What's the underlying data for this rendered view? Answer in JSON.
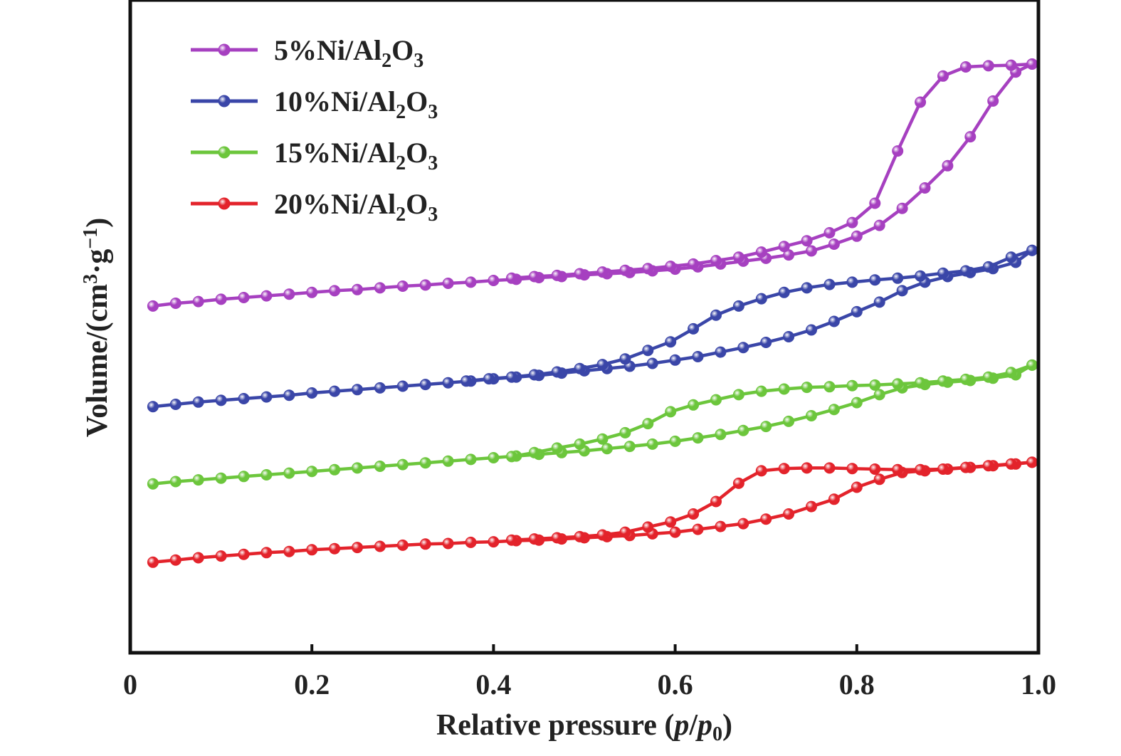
{
  "chart_data": {
    "type": "line",
    "xlabel": {
      "main": "Relative pressure (",
      "p": "p",
      "slash": "/",
      "p0": "p",
      "p0_sub": "0",
      "close": ")"
    },
    "ylabel": {
      "main": "Volume/(cm",
      "sup3": "3",
      "dot": "·g",
      "supneg": "−1",
      "close": ")"
    },
    "xlim": [
      0,
      1.0
    ],
    "ylim": [
      0,
      100
    ],
    "x_ticks": [
      {
        "value": 0,
        "label": "0"
      },
      {
        "value": 0.2,
        "label": "0.2"
      },
      {
        "value": 0.4,
        "label": "0.4"
      },
      {
        "value": 0.6,
        "label": "0.6"
      },
      {
        "value": 0.8,
        "label": "0.8"
      },
      {
        "value": 1.0,
        "label": "1.0"
      }
    ],
    "y_tick_labels": false,
    "grid": false,
    "legend_position": "top-left",
    "series": [
      {
        "name": "5%Ni/Al2O3",
        "legend": {
          "prefix": "5%Ni/Al",
          "sub1": "2",
          "mid": "O",
          "sub2": "3"
        },
        "color": "#a640c0",
        "adsorption": {
          "x": [
            0.025,
            0.05,
            0.075,
            0.1,
            0.125,
            0.15,
            0.175,
            0.2,
            0.225,
            0.25,
            0.275,
            0.3,
            0.325,
            0.35,
            0.375,
            0.4,
            0.425,
            0.45,
            0.475,
            0.5,
            0.525,
            0.55,
            0.575,
            0.6,
            0.625,
            0.65,
            0.675,
            0.7,
            0.725,
            0.75,
            0.775,
            0.8,
            0.825,
            0.85,
            0.875,
            0.9,
            0.925,
            0.95,
            0.975,
            0.993
          ],
          "y": [
            57.4,
            57.9,
            58.2,
            58.6,
            58.9,
            59.2,
            59.5,
            59.8,
            60.1,
            60.3,
            60.6,
            60.9,
            61.1,
            61.4,
            61.6,
            61.9,
            62.1,
            62.4,
            62.6,
            62.9,
            63.1,
            63.3,
            63.6,
            63.9,
            64.3,
            64.8,
            65.3,
            65.8,
            66.4,
            67.1,
            68.3,
            69.7,
            71.6,
            74.6,
            78.2,
            82.1,
            87.2,
            93.5,
            98.6,
            100.0
          ]
        },
        "desorption": {
          "x": [
            0.993,
            0.97,
            0.945,
            0.92,
            0.895,
            0.87,
            0.845,
            0.82,
            0.795,
            0.77,
            0.745,
            0.72,
            0.695,
            0.67,
            0.645,
            0.62,
            0.595,
            0.57,
            0.545,
            0.52,
            0.495,
            0.47,
            0.445,
            0.42
          ],
          "y": [
            100.0,
            99.8,
            99.7,
            99.5,
            97.9,
            93.3,
            84.7,
            75.5,
            72.1,
            70.3,
            68.9,
            67.9,
            66.9,
            66.0,
            65.4,
            64.8,
            64.4,
            64.0,
            63.7,
            63.4,
            63.1,
            62.8,
            62.6,
            62.3
          ]
        }
      },
      {
        "name": "10%Ni/Al2O3",
        "legend": {
          "prefix": "10%Ni/Al",
          "sub1": "2",
          "mid": "O",
          "sub2": "3"
        },
        "color": "#3a46a8",
        "adsorption": {
          "x": [
            0.025,
            0.05,
            0.075,
            0.1,
            0.125,
            0.15,
            0.175,
            0.2,
            0.225,
            0.25,
            0.275,
            0.3,
            0.325,
            0.35,
            0.375,
            0.4,
            0.425,
            0.45,
            0.475,
            0.5,
            0.525,
            0.55,
            0.575,
            0.6,
            0.625,
            0.65,
            0.675,
            0.7,
            0.725,
            0.75,
            0.775,
            0.8,
            0.825,
            0.85,
            0.875,
            0.9,
            0.925,
            0.95,
            0.975,
            0.993
          ],
          "y": [
            39.7,
            40.1,
            40.5,
            40.8,
            41.1,
            41.4,
            41.7,
            42.1,
            42.4,
            42.7,
            43.0,
            43.3,
            43.6,
            43.9,
            44.2,
            44.6,
            44.9,
            45.2,
            45.6,
            46.0,
            46.4,
            46.8,
            47.3,
            47.9,
            48.5,
            49.3,
            50.1,
            51.0,
            52.0,
            53.2,
            54.7,
            56.4,
            58.1,
            60.1,
            61.6,
            62.6,
            63.3,
            64.0,
            65.1,
            67.2
          ]
        },
        "desorption": {
          "x": [
            0.993,
            0.97,
            0.945,
            0.92,
            0.895,
            0.87,
            0.845,
            0.82,
            0.795,
            0.77,
            0.745,
            0.72,
            0.695,
            0.67,
            0.645,
            0.62,
            0.595,
            0.57,
            0.545,
            0.52,
            0.495,
            0.47,
            0.445,
            0.42,
            0.395,
            0.37
          ],
          "y": [
            67.2,
            66.0,
            64.3,
            63.6,
            63.2,
            62.7,
            62.3,
            62.0,
            61.6,
            61.2,
            60.6,
            59.8,
            58.7,
            57.4,
            55.8,
            53.4,
            51.1,
            49.6,
            48.1,
            47.1,
            46.4,
            45.8,
            45.3,
            44.9,
            44.6,
            44.2
          ]
        }
      },
      {
        "name": "15%Ni/Al2O3",
        "legend": {
          "prefix": "15%Ni/Al",
          "sub1": "2",
          "mid": "O",
          "sub2": "3"
        },
        "color": "#6cc63c",
        "adsorption": {
          "x": [
            0.025,
            0.05,
            0.075,
            0.1,
            0.125,
            0.15,
            0.175,
            0.2,
            0.225,
            0.25,
            0.275,
            0.3,
            0.325,
            0.35,
            0.375,
            0.4,
            0.425,
            0.45,
            0.475,
            0.5,
            0.525,
            0.55,
            0.575,
            0.6,
            0.625,
            0.65,
            0.675,
            0.7,
            0.725,
            0.75,
            0.775,
            0.8,
            0.825,
            0.85,
            0.875,
            0.9,
            0.925,
            0.95,
            0.975,
            0.993
          ],
          "y": [
            26.1,
            26.5,
            26.8,
            27.1,
            27.4,
            27.7,
            28.0,
            28.3,
            28.6,
            28.9,
            29.2,
            29.5,
            29.8,
            30.1,
            30.4,
            30.7,
            31.0,
            31.3,
            31.6,
            31.9,
            32.3,
            32.7,
            33.1,
            33.6,
            34.2,
            34.8,
            35.5,
            36.2,
            37.1,
            38.1,
            39.2,
            40.4,
            41.8,
            43.0,
            43.6,
            44.0,
            44.3,
            44.7,
            45.3,
            47.0
          ]
        },
        "desorption": {
          "x": [
            0.993,
            0.97,
            0.945,
            0.92,
            0.895,
            0.87,
            0.845,
            0.82,
            0.795,
            0.77,
            0.745,
            0.72,
            0.695,
            0.67,
            0.645,
            0.62,
            0.595,
            0.57,
            0.545,
            0.52,
            0.495,
            0.47,
            0.445,
            0.42
          ],
          "y": [
            47.0,
            45.7,
            44.9,
            44.5,
            44.2,
            43.9,
            43.7,
            43.5,
            43.4,
            43.2,
            43.1,
            42.8,
            42.4,
            41.8,
            40.9,
            40.0,
            38.8,
            36.7,
            35.1,
            34.0,
            33.1,
            32.4,
            31.6,
            30.9
          ]
        }
      },
      {
        "name": "20%Ni/Al2O3",
        "legend": {
          "prefix": "20%Ni/Al",
          "sub1": "2",
          "mid": "O",
          "sub2": "3"
        },
        "color": "#e3232b",
        "adsorption": {
          "x": [
            0.025,
            0.05,
            0.075,
            0.1,
            0.125,
            0.15,
            0.175,
            0.2,
            0.225,
            0.25,
            0.275,
            0.3,
            0.325,
            0.35,
            0.375,
            0.4,
            0.425,
            0.45,
            0.475,
            0.5,
            0.525,
            0.55,
            0.575,
            0.6,
            0.625,
            0.65,
            0.675,
            0.7,
            0.725,
            0.75,
            0.775,
            0.8,
            0.825,
            0.85,
            0.875,
            0.9,
            0.925,
            0.95,
            0.975,
            0.993
          ],
          "y": [
            12.3,
            12.7,
            13.1,
            13.4,
            13.7,
            14.0,
            14.2,
            14.5,
            14.7,
            14.9,
            15.1,
            15.3,
            15.5,
            15.6,
            15.8,
            15.9,
            16.1,
            16.2,
            16.4,
            16.6,
            16.8,
            17.0,
            17.3,
            17.6,
            18.1,
            18.6,
            19.1,
            19.9,
            20.8,
            22.1,
            23.4,
            25.5,
            26.9,
            28.1,
            28.4,
            28.7,
            29.0,
            29.3,
            29.6,
            29.9
          ]
        },
        "desorption": {
          "x": [
            0.993,
            0.97,
            0.945,
            0.92,
            0.895,
            0.87,
            0.845,
            0.82,
            0.795,
            0.77,
            0.745,
            0.72,
            0.695,
            0.67,
            0.645,
            0.62,
            0.595,
            0.57,
            0.545,
            0.52,
            0.495,
            0.47,
            0.445,
            0.42
          ],
          "y": [
            29.9,
            29.6,
            29.3,
            29.0,
            28.7,
            28.6,
            28.6,
            28.7,
            28.8,
            28.9,
            28.9,
            28.8,
            28.4,
            26.2,
            23.0,
            20.8,
            19.4,
            18.5,
            17.6,
            17.1,
            16.8,
            16.6,
            16.4,
            16.2
          ]
        }
      }
    ]
  }
}
